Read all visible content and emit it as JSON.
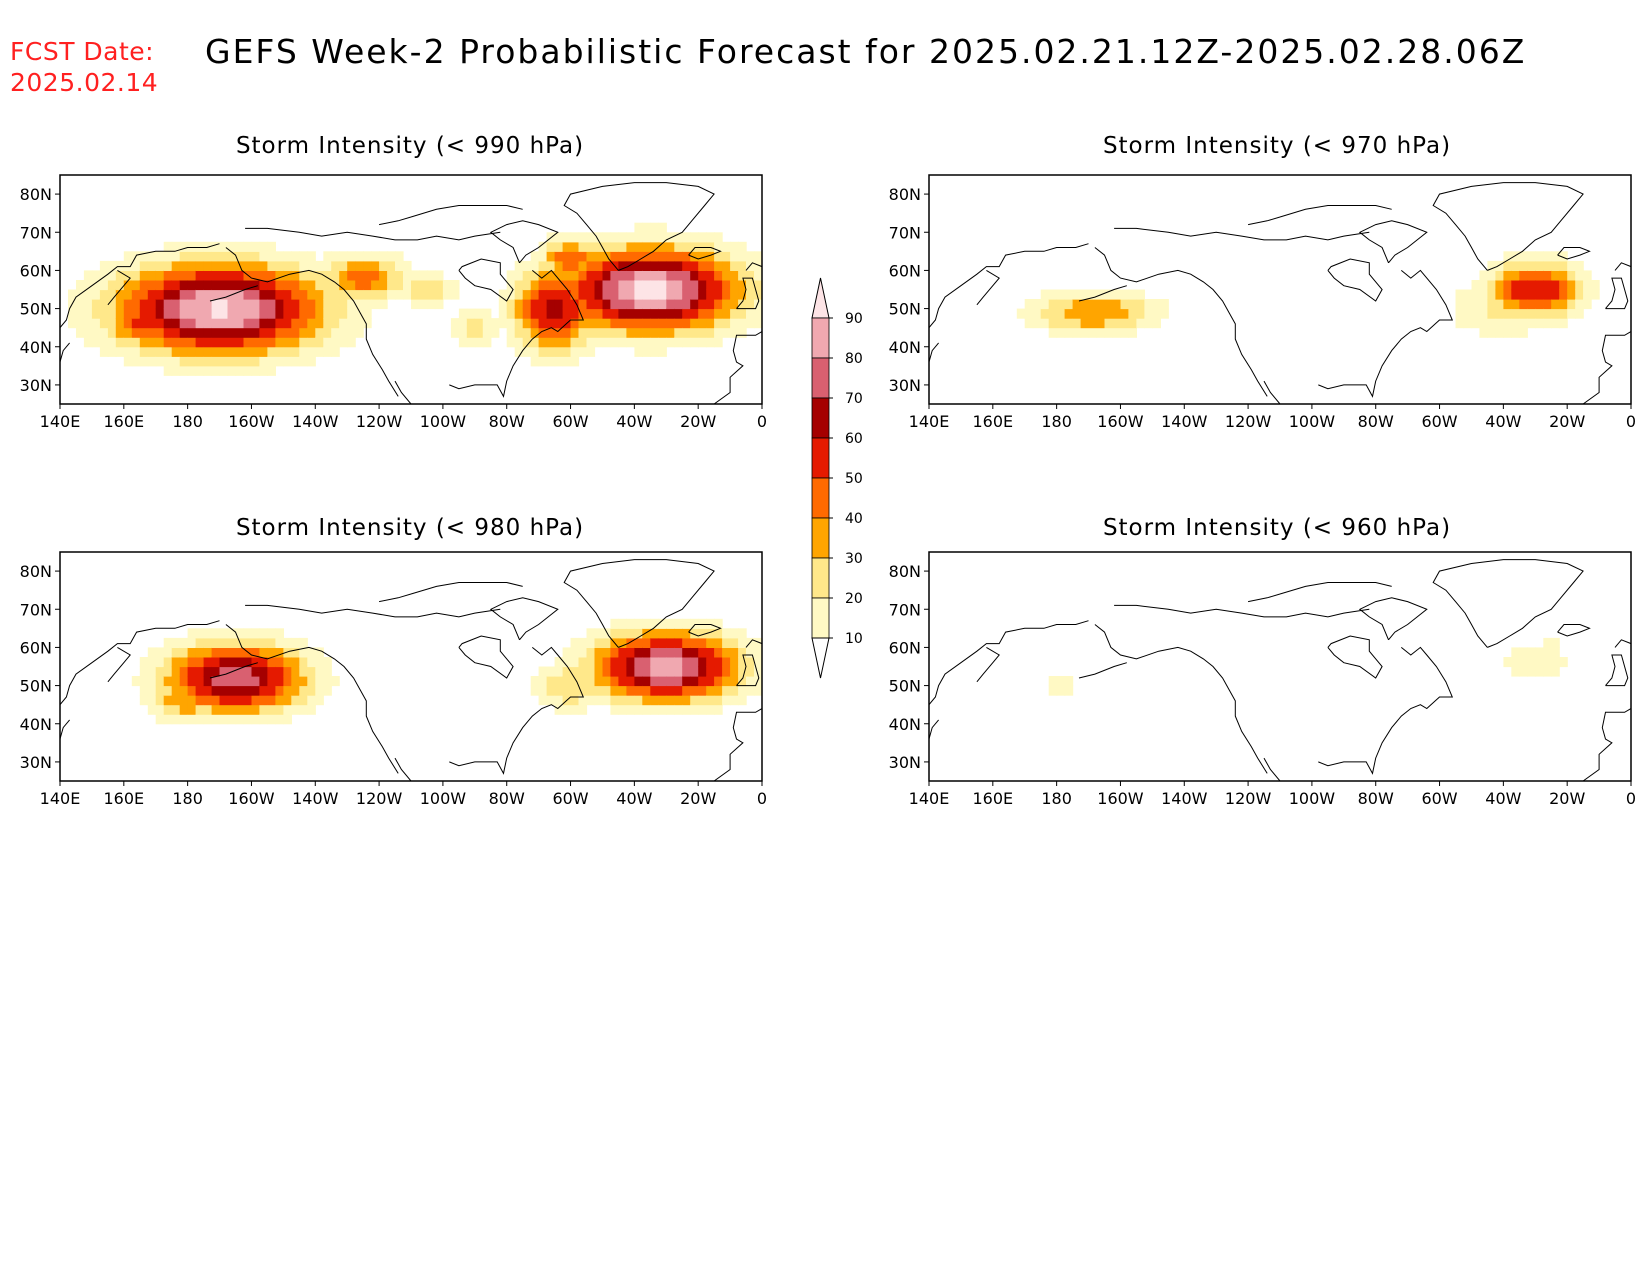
{
  "header": {
    "fcst_label": "FCST Date:",
    "fcst_date": "2025.02.14",
    "title": "GEFS Week-2 Probabilistic Forecast for 2025.02.21.12Z-2025.02.28.06Z"
  },
  "colors": {
    "10": "#fff9c4",
    "20": "#ffe88a",
    "30": "#ffa500",
    "40": "#ff6a00",
    "50": "#e51a00",
    "60": "#a50000",
    "70": "#d96070",
    "80": "#f0a8b0",
    "90": "#fde4e6"
  },
  "colorbar": {
    "levels": [
      "10",
      "20",
      "30",
      "40",
      "50",
      "60",
      "70",
      "80",
      "90"
    ]
  },
  "axes": {
    "lon_labels": [
      "140E",
      "160E",
      "180",
      "160W",
      "140W",
      "120W",
      "100W",
      "80W",
      "60W",
      "40W",
      "20W",
      "0"
    ],
    "lat_labels": [
      "80N",
      "70N",
      "60N",
      "50N",
      "40N",
      "30N"
    ]
  },
  "panels": [
    {
      "id": "p990",
      "title": "Storm Intensity (< 990 hPa)",
      "blobs": [
        {
          "lon": 190,
          "lat": 50,
          "rlon": 35,
          "rlat": 13,
          "peak": 92
        },
        {
          "lon": 165,
          "lat": 47,
          "rlon": 12,
          "rlat": 8,
          "peak": 52
        },
        {
          "lon": 235,
          "lat": 58,
          "rlon": 15,
          "rlat": 7,
          "peak": 45
        },
        {
          "lon": 255,
          "lat": 55,
          "rlon": 10,
          "rlat": 5,
          "peak": 30
        },
        {
          "lon": 270,
          "lat": 45,
          "rlon": 8,
          "rlat": 6,
          "peak": 24
        },
        {
          "lon": 295,
          "lat": 50,
          "rlon": 14,
          "rlat": 12,
          "peak": 66
        },
        {
          "lon": 325,
          "lat": 55,
          "rlon": 30,
          "rlat": 12,
          "peak": 94
        },
        {
          "lon": 300,
          "lat": 63,
          "rlon": 10,
          "rlat": 6,
          "peak": 50
        }
      ]
    },
    {
      "id": "p970",
      "title": "Storm Intensity (< 970 hPa)",
      "blobs": [
        {
          "lon": 192,
          "lat": 49,
          "rlon": 22,
          "rlat": 6,
          "peak": 40
        },
        {
          "lon": 185,
          "lat": 46,
          "rlon": 15,
          "rlat": 6,
          "peak": 16
        },
        {
          "lon": 330,
          "lat": 55,
          "rlon": 16,
          "rlat": 8,
          "peak": 62
        },
        {
          "lon": 320,
          "lat": 50,
          "rlon": 20,
          "rlat": 9,
          "peak": 22
        }
      ]
    },
    {
      "id": "p980",
      "title": "Storm Intensity (< 980 hPa)",
      "blobs": [
        {
          "lon": 195,
          "lat": 52,
          "rlon": 24,
          "rlat": 10,
          "peak": 78
        },
        {
          "lon": 180,
          "lat": 47,
          "rlon": 14,
          "rlat": 7,
          "peak": 40
        },
        {
          "lon": 330,
          "lat": 55,
          "rlon": 25,
          "rlat": 10,
          "peak": 86
        },
        {
          "lon": 300,
          "lat": 50,
          "rlon": 12,
          "rlat": 7,
          "peak": 30
        }
      ]
    },
    {
      "id": "p960",
      "title": "Storm Intensity (< 960 hPa)",
      "blobs": [
        {
          "lon": 182,
          "lat": 50,
          "rlon": 6,
          "rlat": 3,
          "peak": 18
        },
        {
          "lon": 330,
          "lat": 56,
          "rlon": 14,
          "rlat": 5,
          "peak": 20
        },
        {
          "lon": 335,
          "lat": 62,
          "rlon": 6,
          "rlat": 3,
          "peak": 14
        }
      ]
    }
  ]
}
